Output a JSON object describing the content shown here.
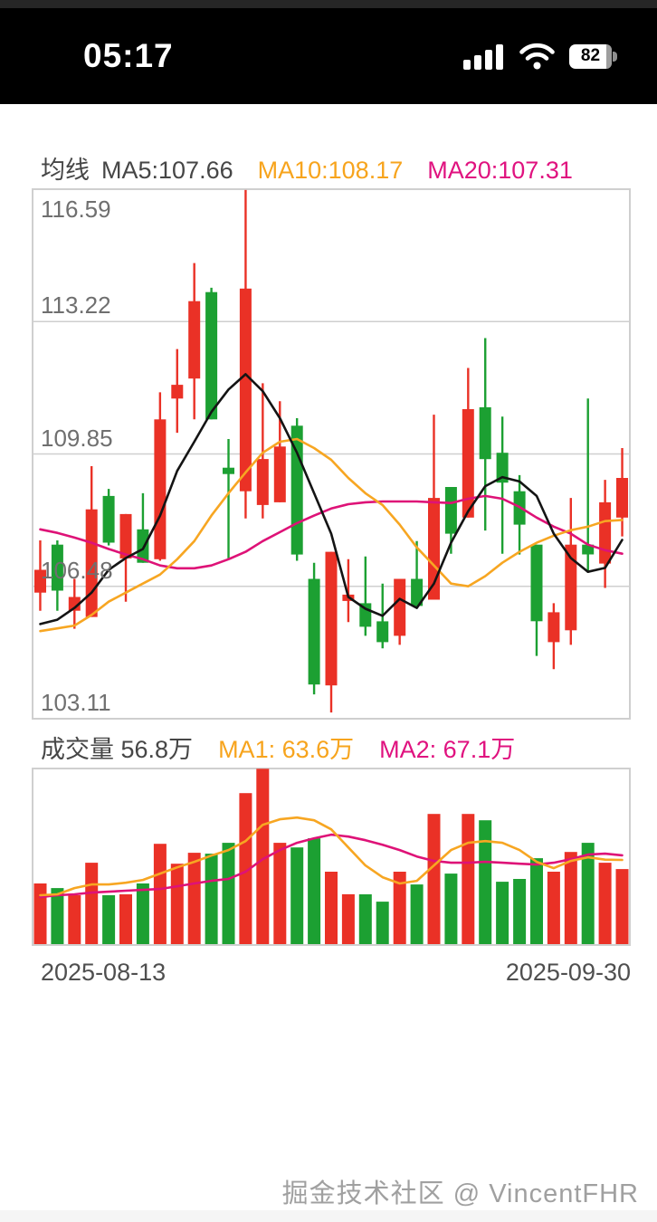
{
  "status_bar": {
    "time": "05:17",
    "battery_percent": "82",
    "icons": [
      "signal-bars-icon",
      "wifi-icon",
      "battery-icon"
    ]
  },
  "kline_header": {
    "title": "均线",
    "ma5": "MA5:107.66",
    "ma10": "MA10:108.17",
    "ma20": "MA20:107.31"
  },
  "volume_header": {
    "volume": "成交量 56.8万",
    "ma1": "MA1: 63.6万",
    "ma2": "MA2: 67.1万"
  },
  "x_axis": {
    "start": "2025-08-13",
    "end": "2025-09-30"
  },
  "watermark": "掘金技术社区 @ VincentFHR",
  "colors": {
    "up": "#ea3126",
    "down": "#1ca032",
    "ma5": "#141414",
    "ma10": "#f7a622",
    "ma20": "#de1277",
    "grid": "#cfcfcf",
    "label": "#6f6f6f"
  },
  "chart_data": [
    {
      "type": "candlestick",
      "title": "均线",
      "legend": [
        "MA5:107.66",
        "MA10:108.17",
        "MA20:107.31"
      ],
      "x_range": [
        "2025-08-13",
        "2025-09-30"
      ],
      "y_ticks": [
        116.59,
        113.22,
        109.85,
        106.48,
        103.11
      ],
      "ylim": [
        103.11,
        116.59
      ],
      "grid": true,
      "up_rule": "close>=open renders red (up), close<open renders green (down)",
      "candles": [
        {
          "o": 106.32,
          "h": 107.65,
          "l": 105.86,
          "c": 106.9
        },
        {
          "o": 107.54,
          "h": 107.65,
          "l": 105.86,
          "c": 106.37
        },
        {
          "o": 105.86,
          "h": 106.67,
          "l": 105.4,
          "c": 106.21
        },
        {
          "o": 105.7,
          "h": 109.54,
          "l": 105.7,
          "c": 108.44
        },
        {
          "o": 108.78,
          "h": 108.96,
          "l": 107.52,
          "c": 107.59
        },
        {
          "o": 107.19,
          "h": 108.32,
          "l": 106.09,
          "c": 108.32
        },
        {
          "o": 107.93,
          "h": 108.85,
          "l": 107.08,
          "c": 107.08
        },
        {
          "o": 107.17,
          "h": 111.42,
          "l": 107.13,
          "c": 110.73
        },
        {
          "o": 111.26,
          "h": 112.52,
          "l": 110.39,
          "c": 111.61
        },
        {
          "o": 111.77,
          "h": 114.71,
          "l": 110.73,
          "c": 113.74
        },
        {
          "o": 113.97,
          "h": 114.08,
          "l": 110.73,
          "c": 110.73
        },
        {
          "o": 109.5,
          "h": 110.23,
          "l": 107.19,
          "c": 109.45
        },
        {
          "o": 108.9,
          "h": 116.57,
          "l": 108.21,
          "c": 114.06
        },
        {
          "o": 108.55,
          "h": 111.65,
          "l": 108.21,
          "c": 109.72
        },
        {
          "o": 108.62,
          "h": 111.19,
          "l": 108.62,
          "c": 110.04
        },
        {
          "o": 110.57,
          "h": 110.76,
          "l": 107.13,
          "c": 107.29
        },
        {
          "o": 106.67,
          "h": 107.08,
          "l": 103.73,
          "c": 103.98
        },
        {
          "o": 103.96,
          "h": 107.36,
          "l": 103.27,
          "c": 107.36
        },
        {
          "o": 106.22,
          "h": 107.17,
          "l": 105.57,
          "c": 106.27
        },
        {
          "o": 106.05,
          "h": 107.24,
          "l": 105.22,
          "c": 105.45
        },
        {
          "o": 105.59,
          "h": 106.55,
          "l": 104.9,
          "c": 105.06
        },
        {
          "o": 105.22,
          "h": 106.67,
          "l": 104.99,
          "c": 106.67
        },
        {
          "o": 106.67,
          "h": 107.63,
          "l": 105.95,
          "c": 105.98
        },
        {
          "o": 106.14,
          "h": 110.85,
          "l": 106.14,
          "c": 108.73
        },
        {
          "o": 109.01,
          "h": 109.01,
          "l": 107.31,
          "c": 107.82
        },
        {
          "o": 108.23,
          "h": 112.04,
          "l": 108.23,
          "c": 110.99
        },
        {
          "o": 111.04,
          "h": 112.8,
          "l": 107.9,
          "c": 109.72
        },
        {
          "o": 109.88,
          "h": 110.8,
          "l": 107.31,
          "c": 109.12
        },
        {
          "o": 108.9,
          "h": 109.31,
          "l": 107.29,
          "c": 108.05
        },
        {
          "o": 107.54,
          "h": 107.54,
          "l": 104.71,
          "c": 105.59
        },
        {
          "o": 105.06,
          "h": 106.05,
          "l": 104.37,
          "c": 105.82
        },
        {
          "o": 105.36,
          "h": 108.73,
          "l": 104.99,
          "c": 107.54
        },
        {
          "o": 107.54,
          "h": 111.26,
          "l": 106.83,
          "c": 107.29
        },
        {
          "o": 107.06,
          "h": 109.19,
          "l": 106.44,
          "c": 108.62
        },
        {
          "o": 108.23,
          "h": 110.0,
          "l": 107.75,
          "c": 109.24
        }
      ],
      "series": [
        {
          "name": "MA5",
          "color_key": "ma5",
          "values": [
            105.52,
            105.63,
            105.93,
            106.32,
            106.9,
            107.2,
            107.43,
            108.28,
            109.42,
            110.16,
            110.92,
            111.49,
            111.88,
            111.45,
            110.76,
            109.88,
            108.85,
            107.82,
            106.21,
            105.91,
            105.73,
            106.16,
            105.93,
            106.55,
            107.59,
            108.39,
            109.03,
            109.26,
            109.15,
            108.78,
            107.82,
            107.2,
            106.85,
            106.95,
            107.66
          ]
        },
        {
          "name": "MA10",
          "color_key": "ma10",
          "values": [
            105.34,
            105.41,
            105.48,
            105.75,
            106.09,
            106.32,
            106.55,
            106.78,
            107.17,
            107.63,
            108.28,
            108.85,
            109.38,
            109.88,
            110.16,
            110.23,
            110.0,
            109.7,
            109.24,
            108.85,
            108.55,
            108.05,
            107.47,
            107.01,
            106.55,
            106.48,
            106.74,
            107.08,
            107.36,
            107.59,
            107.77,
            107.91,
            108.0,
            108.14,
            108.17
          ]
        },
        {
          "name": "MA20",
          "color_key": "ma20",
          "values": [
            107.93,
            107.84,
            107.72,
            107.59,
            107.43,
            107.29,
            107.17,
            107.01,
            106.94,
            106.94,
            107.01,
            107.17,
            107.36,
            107.63,
            107.86,
            108.09,
            108.28,
            108.46,
            108.57,
            108.62,
            108.64,
            108.64,
            108.64,
            108.62,
            108.6,
            108.71,
            108.78,
            108.71,
            108.5,
            108.23,
            108.0,
            107.82,
            107.54,
            107.4,
            107.31
          ]
        }
      ]
    },
    {
      "type": "bar",
      "title": "成交量",
      "unit": "万",
      "latest": 56.8,
      "ylim": [
        0,
        132
      ],
      "values": [
        46.0,
        42.6,
        37.2,
        61.5,
        37.2,
        37.9,
        46.0,
        75.7,
        60.8,
        69.0,
        68.3,
        76.4,
        113.6,
        131.8,
        76.4,
        73.0,
        79.8,
        54.8,
        38.0,
        37.9,
        32.4,
        54.8,
        45.3,
        98.0,
        53.4,
        98.0,
        93.3,
        47.3,
        49.4,
        64.9,
        54.8,
        69.6,
        76.4,
        61.5,
        56.8
      ],
      "series": [
        {
          "name": "MA1",
          "color_key": "ma10",
          "values": [
            37.2,
            37.9,
            42.6,
            45.3,
            45.3,
            46.6,
            48.7,
            53.4,
            58.1,
            62.2,
            66.9,
            71.0,
            77.7,
            89.9,
            94.0,
            95.3,
            93.3,
            86.5,
            73.0,
            59.5,
            50.7,
            46.0,
            48.0,
            59.5,
            71.0,
            76.4,
            77.7,
            76.4,
            71.0,
            62.2,
            57.5,
            62.9,
            65.6,
            63.8,
            63.6
          ]
        },
        {
          "name": "MA2",
          "color_key": "ma20",
          "values": [
            35.8,
            37.2,
            37.9,
            39.2,
            39.9,
            40.6,
            41.2,
            41.9,
            43.9,
            46.0,
            48.0,
            49.4,
            54.8,
            64.2,
            71.0,
            76.4,
            79.8,
            82.5,
            81.1,
            78.4,
            75.0,
            71.0,
            66.2,
            62.9,
            61.5,
            61.5,
            62.2,
            61.5,
            60.8,
            60.2,
            61.5,
            64.2,
            67.6,
            68.3,
            67.1
          ]
        }
      ]
    }
  ]
}
